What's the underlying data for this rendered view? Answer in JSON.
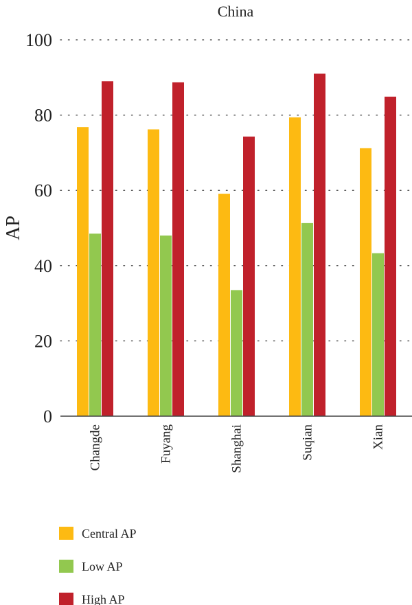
{
  "chart_data": {
    "type": "bar",
    "title": "China",
    "xlabel": "",
    "ylabel": "AP",
    "ylim": [
      0,
      100
    ],
    "yticks": [
      0,
      20,
      40,
      60,
      80,
      100
    ],
    "grid": true,
    "legend_position": "bottom-left",
    "categories": [
      "Changde",
      "Fuyang",
      "Shanghai",
      "Suqian",
      "Xian"
    ],
    "series": [
      {
        "name": "Central AP",
        "color": "#FDBA12",
        "values": [
          76.8,
          76.2,
          59.1,
          79.4,
          71.2
        ]
      },
      {
        "name": "Low AP",
        "color": "#92C84F",
        "values": [
          48.5,
          48.0,
          33.5,
          51.3,
          43.3
        ]
      },
      {
        "name": "High AP",
        "color": "#C0212B",
        "values": [
          89.0,
          88.7,
          74.3,
          91.0,
          84.9
        ]
      }
    ]
  }
}
